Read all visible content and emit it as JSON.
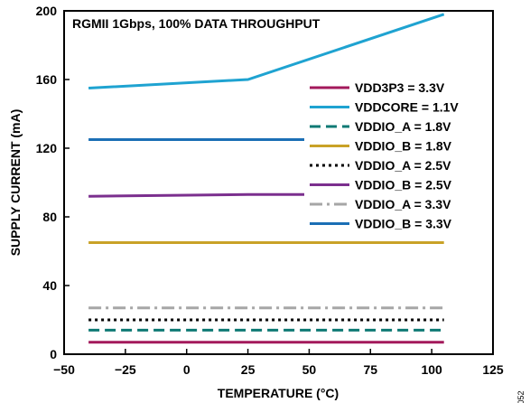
{
  "chart_data": {
    "type": "line",
    "title": "RGMII 1Gbps, 100% DATA THROUGHPUT",
    "xlabel": "TEMPERATURE (°C)",
    "ylabel": "SUPPLY CURRENT (mA)",
    "xlim": [
      -50,
      125
    ],
    "ylim": [
      0,
      200
    ],
    "xticks": [
      -50,
      -25,
      0,
      25,
      50,
      75,
      100,
      125
    ],
    "yticks": [
      0,
      40,
      80,
      120,
      160,
      200
    ],
    "grid": false,
    "legend_position": "right",
    "figure_code": "052",
    "series": [
      {
        "name": "VDD3P3 = 3.3V",
        "color": "#a3195b",
        "dash": "solid",
        "x": [
          -40,
          105
        ],
        "y": [
          7,
          7
        ]
      },
      {
        "name": "VDDCORE = 1.1V",
        "color": "#1fa3d1",
        "dash": "solid",
        "x": [
          -40,
          25,
          105
        ],
        "y": [
          155,
          160,
          198
        ]
      },
      {
        "name": "VDDIO_A = 1.8V",
        "color": "#0e7a74",
        "dash": "dashed",
        "x": [
          -40,
          105
        ],
        "y": [
          14,
          14
        ]
      },
      {
        "name": "VDDIO_B = 1.8V",
        "color": "#c9a227",
        "dash": "solid",
        "x": [
          -40,
          105
        ],
        "y": [
          65,
          65
        ]
      },
      {
        "name": "VDDIO_A = 2.5V",
        "color": "#000000",
        "dash": "dotted",
        "x": [
          -40,
          105
        ],
        "y": [
          20,
          20
        ]
      },
      {
        "name": "VDDIO_B = 2.5V",
        "color": "#7b2f8e",
        "dash": "solid",
        "x": [
          -40,
          25,
          105
        ],
        "y": [
          92,
          93,
          93
        ]
      },
      {
        "name": "VDDIO_A = 3.3V",
        "color": "#a6a6a6",
        "dash": "dashdot",
        "x": [
          -40,
          105
        ],
        "y": [
          27,
          27
        ]
      },
      {
        "name": "VDDIO_B = 3.3V",
        "color": "#1b6fb5",
        "dash": "solid",
        "x": [
          -40,
          105
        ],
        "y": [
          125,
          125
        ]
      }
    ]
  }
}
